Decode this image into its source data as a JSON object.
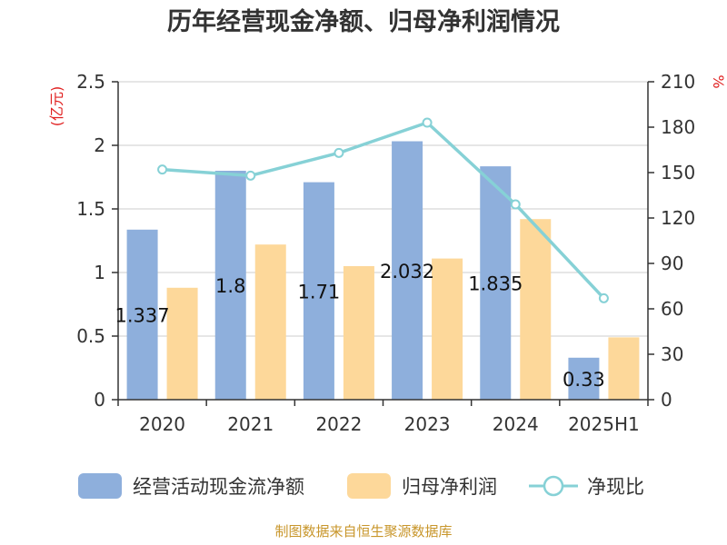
{
  "chart_data": {
    "type": "bar",
    "title": "历年经营现金净额、归母净利润情况",
    "categories": [
      "2020",
      "2021",
      "2022",
      "2023",
      "2024",
      "2025H1"
    ],
    "left_axis": {
      "unit": "(亿元)",
      "min": 0,
      "max": 2.5,
      "ticks": [
        "0",
        "0.5",
        "1",
        "1.5",
        "2",
        "2.5"
      ]
    },
    "right_axis": {
      "unit": "%",
      "min": 0,
      "max": 210,
      "ticks": [
        "0",
        "30",
        "60",
        "90",
        "120",
        "150",
        "180",
        "210"
      ]
    },
    "grid": true,
    "legend_position": "bottom",
    "series": [
      {
        "name": "经营活动现金流净额",
        "type": "bar",
        "axis": "left",
        "color": "#8eafdc",
        "values": [
          1.337,
          1.8,
          1.71,
          2.032,
          1.835,
          0.33
        ],
        "labels": [
          "1.337",
          "1.8",
          "1.71",
          "2.032",
          "1.835",
          "0.33"
        ]
      },
      {
        "name": "归母净利润",
        "type": "bar",
        "axis": "left",
        "color": "#fdd89a",
        "values": [
          0.88,
          1.22,
          1.05,
          1.11,
          1.42,
          0.49
        ]
      },
      {
        "name": "净现比",
        "type": "line",
        "axis": "right",
        "color": "#86d1d6",
        "values": [
          152,
          148,
          163,
          183,
          129,
          67
        ]
      }
    ]
  },
  "footer": {
    "source": "制图数据来自恒生聚源数据库"
  }
}
